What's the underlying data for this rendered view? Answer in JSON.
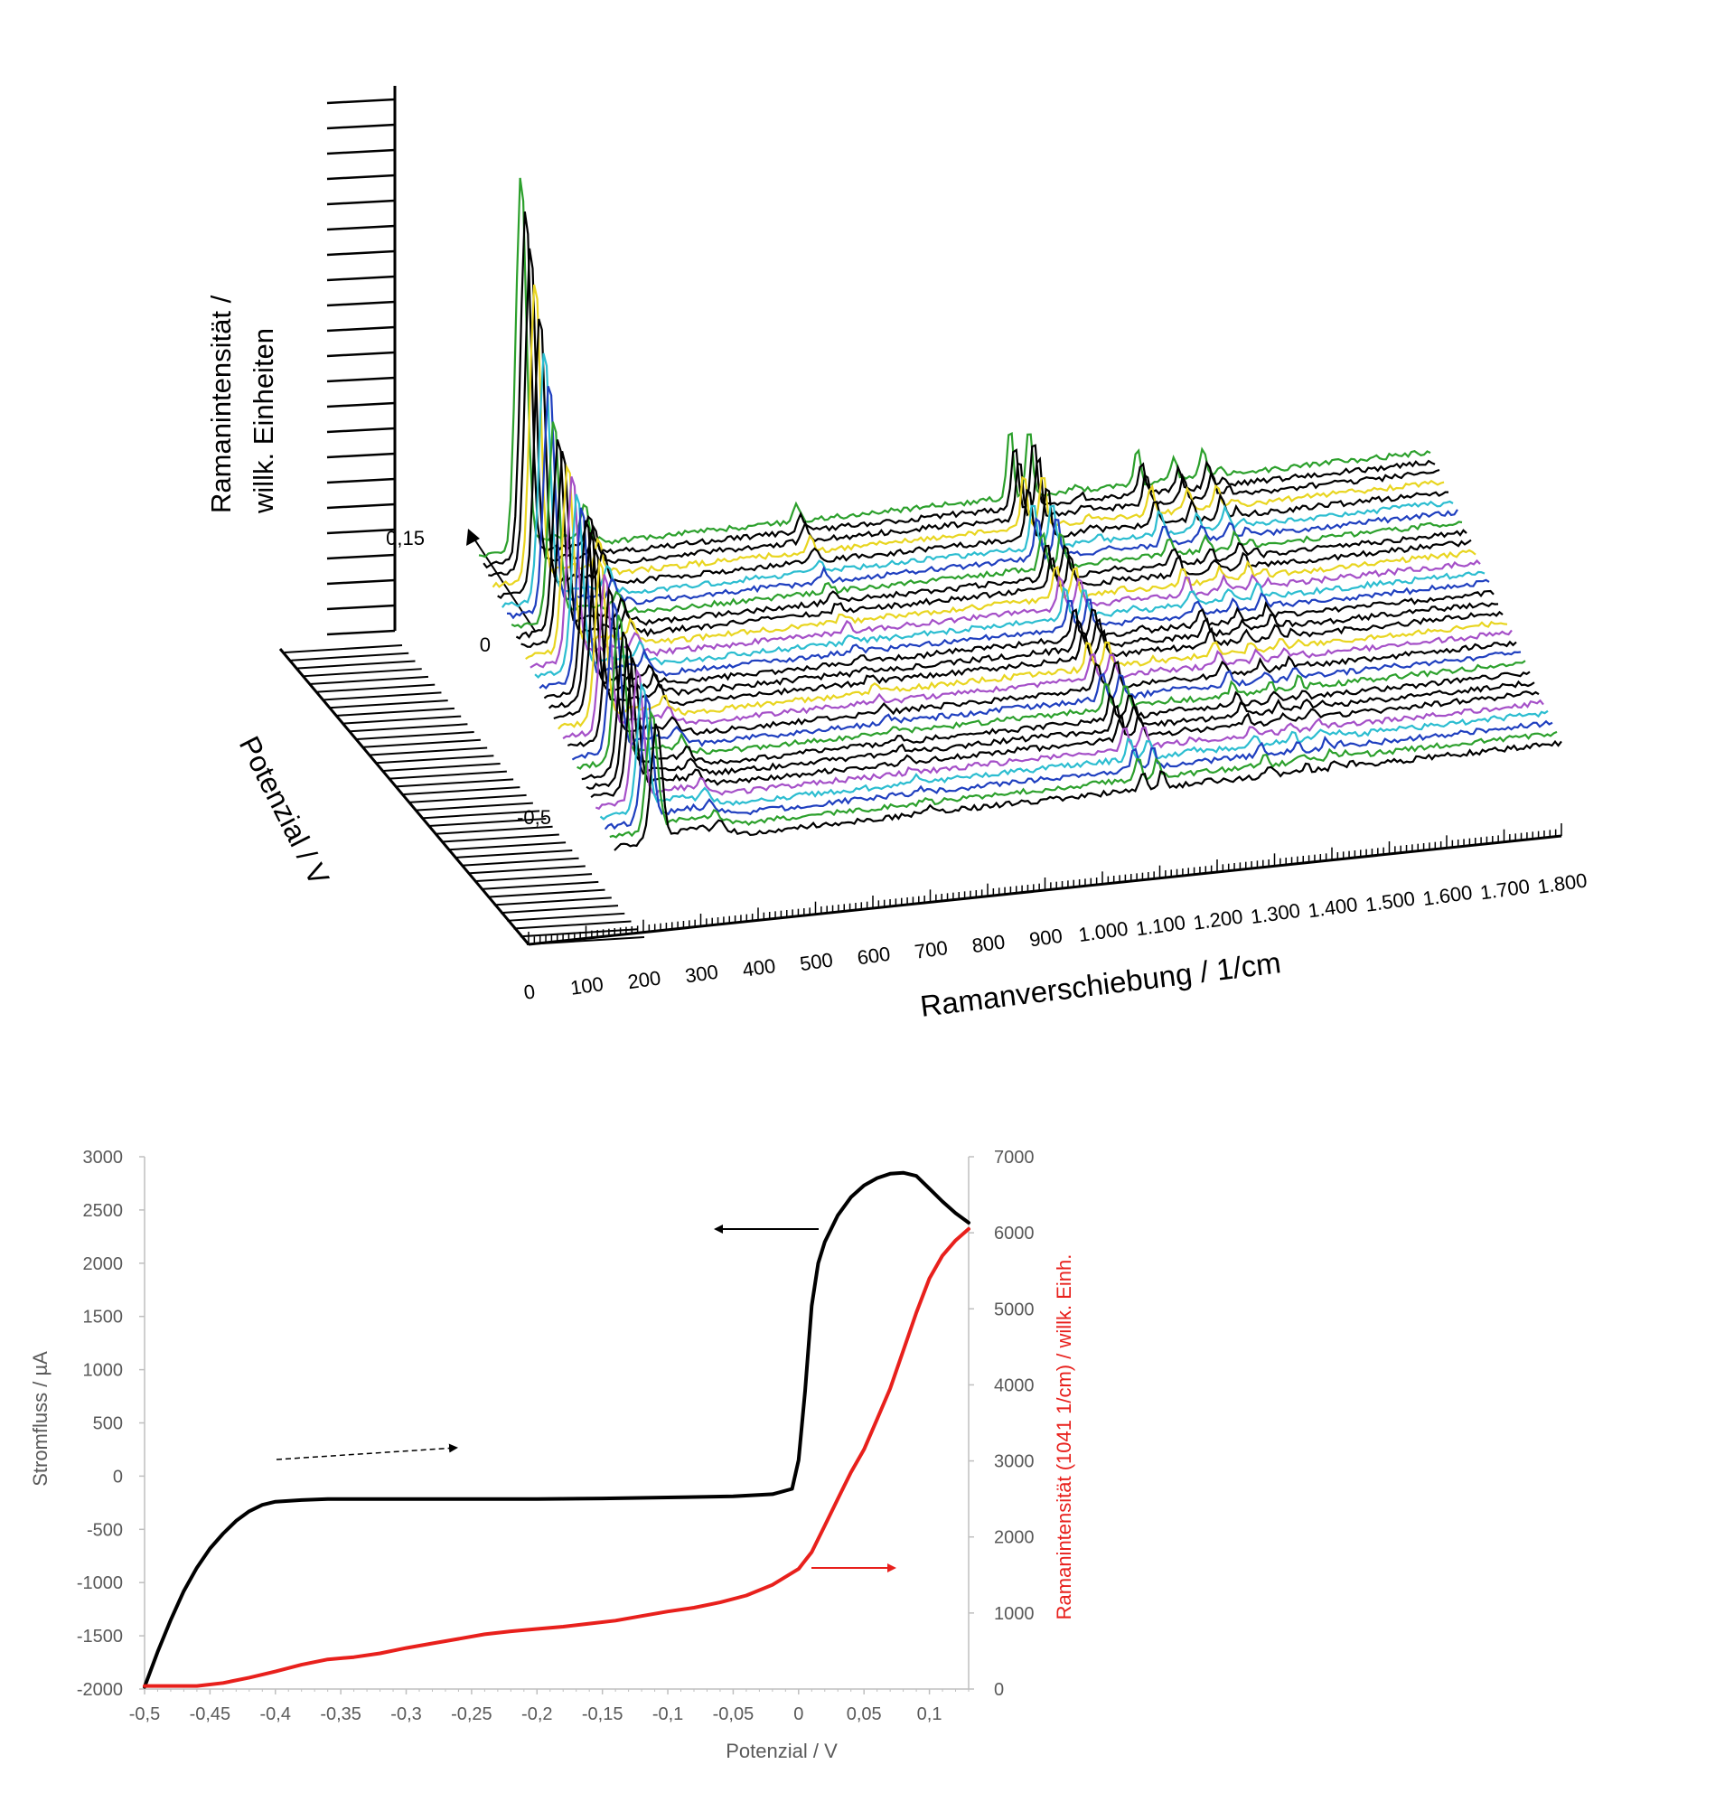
{
  "chart_data": [
    {
      "type": "line",
      "subtype": "waterfall-3d",
      "xlabel": "Ramanverschiebung /  1/cm",
      "ylabel": "Ramanintensität / willk. Einheiten",
      "ylabel_lines": [
        "Ramanintensität /",
        "willk. Einheiten"
      ],
      "zlabel": "Potenzial / V",
      "x_ticks": [
        "0",
        "100",
        "200",
        "300",
        "400",
        "500",
        "600",
        "700",
        "800",
        "900",
        "1.000",
        "1.100",
        "1.200",
        "1.300",
        "1.400",
        "1.500",
        "1.600",
        "1.700",
        "1.800"
      ],
      "z_ticks": [
        "-0,5",
        "0",
        "0,15"
      ],
      "xlim": [
        0,
        1800
      ],
      "zlim": [
        -0.5,
        0.15
      ],
      "n_spectra": 30,
      "peaks_x": [
        80,
        200,
        600,
        1005,
        1041,
        1130,
        1245,
        1315,
        1370,
        1400
      ],
      "trace_colors": [
        "#d62020",
        "#2ca02c",
        "#1f3fbf",
        "#2cbdd0",
        "#a550c8",
        "#e8d520",
        "#000000"
      ],
      "grid": false
    },
    {
      "type": "line",
      "xlabel": "Potenzial / V",
      "ylabel": "Stromfluss / µA",
      "ylabel_right": "Ramanintensität (1041 1/cm) / willk. Einh.",
      "xlim": [
        -0.5,
        0.13
      ],
      "ylim": [
        -2000,
        3000
      ],
      "ylim_right": [
        0,
        7000
      ],
      "x_ticks": [
        "-0,5",
        "-0,45",
        "-0,4",
        "-0,35",
        "-0,3",
        "-0,25",
        "-0,2",
        "-0,15",
        "-0,1",
        "-0,05",
        "0",
        "0,05",
        "0,1"
      ],
      "y_ticks": [
        "3000",
        "2500",
        "2000",
        "1500",
        "1000",
        "500",
        "0",
        "-500",
        "-1000",
        "-1500",
        "-2000"
      ],
      "y_ticks_right": [
        "7000",
        "6000",
        "5000",
        "4000",
        "3000",
        "2000",
        "1000",
        "0"
      ],
      "grid": false,
      "series": [
        {
          "color": "#000000",
          "axis": "left",
          "x": [
            -0.5,
            -0.49,
            -0.48,
            -0.47,
            -0.46,
            -0.45,
            -0.44,
            -0.43,
            -0.42,
            -0.41,
            -0.4,
            -0.38,
            -0.36,
            -0.33,
            -0.3,
            -0.25,
            -0.2,
            -0.15,
            -0.1,
            -0.05,
            -0.02,
            -0.005,
            0.0,
            0.005,
            0.01,
            0.015,
            0.02,
            0.03,
            0.04,
            0.05,
            0.06,
            0.07,
            0.08,
            0.09,
            0.1,
            0.11,
            0.12,
            0.13
          ],
          "y": [
            -1980,
            -1650,
            -1350,
            -1080,
            -860,
            -680,
            -540,
            -420,
            -330,
            -270,
            -240,
            -225,
            -215,
            -215,
            -215,
            -215,
            -215,
            -210,
            -200,
            -190,
            -170,
            -120,
            150,
            800,
            1600,
            2000,
            2200,
            2450,
            2620,
            2730,
            2800,
            2840,
            2850,
            2820,
            2700,
            2580,
            2470,
            2380
          ]
        },
        {
          "color": "#e8201c",
          "axis": "right",
          "x": [
            -0.5,
            -0.48,
            -0.46,
            -0.44,
            -0.42,
            -0.4,
            -0.38,
            -0.36,
            -0.34,
            -0.32,
            -0.3,
            -0.28,
            -0.26,
            -0.24,
            -0.22,
            -0.2,
            -0.18,
            -0.16,
            -0.14,
            -0.12,
            -0.1,
            -0.08,
            -0.06,
            -0.04,
            -0.02,
            0.0,
            0.01,
            0.02,
            0.03,
            0.04,
            0.05,
            0.06,
            0.07,
            0.08,
            0.09,
            0.1,
            0.11,
            0.12,
            0.13
          ],
          "y": [
            40,
            40,
            40,
            80,
            150,
            230,
            320,
            390,
            420,
            470,
            540,
            600,
            660,
            720,
            760,
            790,
            820,
            860,
            900,
            960,
            1020,
            1070,
            1140,
            1230,
            1370,
            1580,
            1800,
            2150,
            2500,
            2850,
            3150,
            3550,
            3950,
            4450,
            4950,
            5400,
            5700,
            5900,
            6050
          ]
        }
      ],
      "annotations": [
        {
          "type": "arrow",
          "direction": "left",
          "color": "#000000",
          "style": "solid",
          "target": "left-axis"
        },
        {
          "type": "arrow",
          "direction": "right",
          "color": "#000000",
          "style": "dashed",
          "meaning": "scan-direction"
        },
        {
          "type": "arrow",
          "direction": "right",
          "color": "#e8201c",
          "style": "solid",
          "target": "right-axis"
        }
      ]
    }
  ]
}
